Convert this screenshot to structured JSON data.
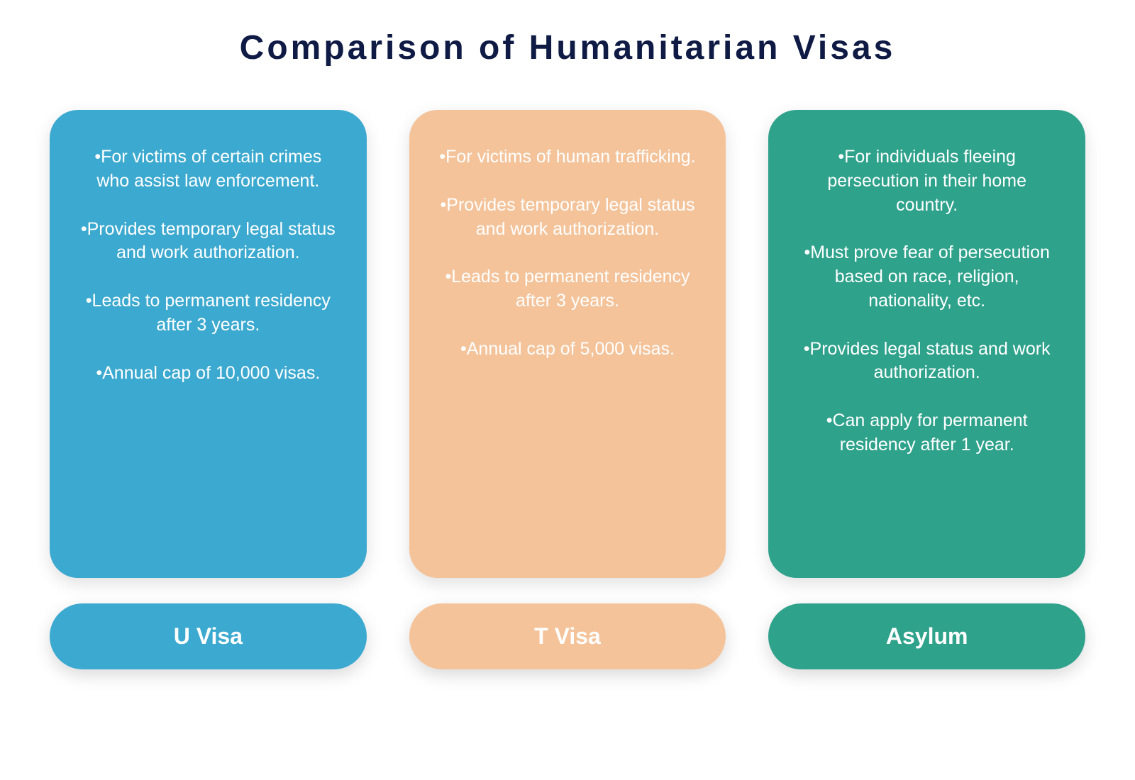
{
  "title": {
    "text": "Comparison of Humanitarian Visas",
    "color": "#0f1b44",
    "fontsize": 48
  },
  "layout": {
    "card_border_radius": 40,
    "pill_border_radius": 50,
    "body_fontsize": 25,
    "label_fontsize": 32,
    "text_color": "#ffffff"
  },
  "columns": [
    {
      "id": "u-visa",
      "label": "U Visa",
      "color": "#3ca9d0",
      "bullets": [
        "•For victims of certain crimes who assist law enforcement.",
        "•Provides temporary legal status and work authorization.",
        "•Leads to permanent residency after 3 years.",
        "•Annual cap of 10,000 visas."
      ]
    },
    {
      "id": "t-visa",
      "label": "T Visa",
      "color": "#f4c39a",
      "bullets": [
        "•For victims of human trafficking.",
        "•Provides temporary legal status and work authorization.",
        "•Leads to permanent residency after 3 years.",
        "•Annual cap of 5,000 visas."
      ]
    },
    {
      "id": "asylum",
      "label": "Asylum",
      "color": "#2ea28b",
      "bullets": [
        "•For individuals fleeing persecution in their home country.",
        "•Must prove fear of persecution based on race, religion, nationality, etc.",
        "•Provides legal status and work authorization.",
        "•Can apply for permanent residency after 1 year."
      ]
    }
  ]
}
